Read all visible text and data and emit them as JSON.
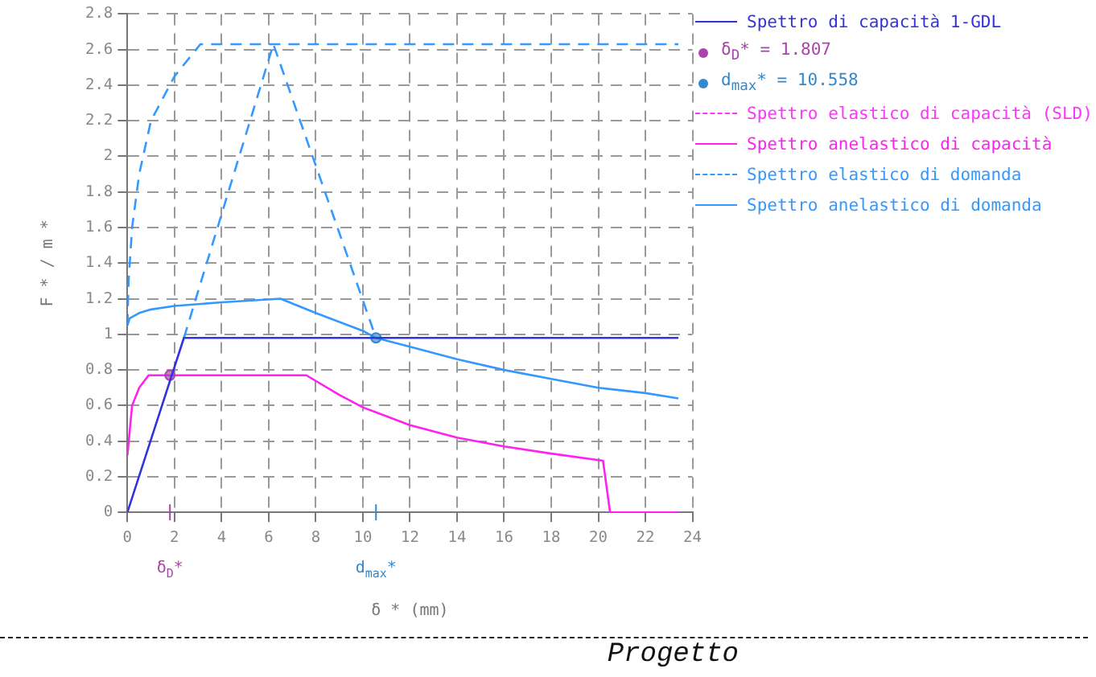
{
  "chart_data": {
    "type": "line",
    "xlabel": "δ * (mm)",
    "ylabel": "F * / m *",
    "xlim": [
      0,
      24
    ],
    "xticks": [
      0,
      2,
      4,
      6,
      8,
      10,
      12,
      14,
      16,
      18,
      20,
      22,
      24
    ],
    "ylim": [
      0,
      2.8
    ],
    "yticks": [
      0,
      0.2,
      0.4,
      0.6,
      0.8,
      1,
      1.2,
      1.4,
      1.6,
      1.8,
      2,
      2.2,
      2.4,
      2.6,
      2.8
    ],
    "grid": true,
    "legend": "right",
    "marker": "none",
    "series": [
      {
        "name": "Spettro di capacità 1-GDL",
        "color": "#3333dd",
        "line_style": "solid",
        "x": [
          0,
          2.4,
          23.4
        ],
        "values": [
          0,
          0.98,
          0.98
        ]
      },
      {
        "name": "δ$_{D}$* = 1.807",
        "color": "#aa44aa",
        "type": "scatter",
        "marker": "circle",
        "x": [
          1.807
        ],
        "values": [
          0.77
        ]
      },
      {
        "name": "d$_{max}$* = 10.558",
        "color": "#3388cc",
        "type": "scatter",
        "marker": "circle",
        "x": [
          10.558
        ],
        "values": [
          0.98
        ]
      },
      {
        "name": "Spettro elastico di capacità (SLD)",
        "color": "#ff33ff",
        "line_style": "dashed"
      },
      {
        "name": "Spettro anelastico di capacità",
        "color": "#ff22ee",
        "line_style": "solid",
        "x": [
          0,
          0.2,
          0.5,
          0.9,
          7.6,
          9,
          10,
          12,
          14,
          16,
          18,
          20.2,
          20.5,
          23.4
        ],
        "values": [
          0.32,
          0.6,
          0.7,
          0.77,
          0.77,
          0.66,
          0.59,
          0.49,
          0.42,
          0.37,
          0.33,
          0.29,
          0,
          0
        ]
      },
      {
        "name": "Spettro elastico di domanda",
        "color": "#3399ff",
        "line_style": "dashed",
        "x": [
          0,
          0.05,
          0.2,
          0.5,
          1,
          2,
          3.1,
          23.4
        ],
        "values": [
          1.05,
          1.3,
          1.6,
          1.9,
          2.2,
          2.45,
          2.63,
          2.63
        ]
      },
      {
        "color": "#3399ff",
        "line_style": "dashed",
        "x": [
          2.4,
          6.2,
          10.558
        ],
        "values": [
          0.98,
          2.63,
          0.98
        ]
      },
      {
        "name": "Spettro anelastico di domanda",
        "color": "#3399ff",
        "line_style": "solid",
        "x": [
          0,
          0.1,
          0.5,
          1,
          2,
          4,
          6.5,
          8,
          10,
          10.558,
          12,
          14,
          16,
          18,
          20,
          22,
          23.4
        ],
        "values": [
          1.05,
          1.09,
          1.12,
          1.14,
          1.16,
          1.18,
          1.2,
          1.12,
          1.02,
          0.98,
          0.93,
          0.86,
          0.8,
          0.75,
          0.7,
          0.67,
          0.64
        ]
      }
    ],
    "annotations": [
      "δ$_{D}$*",
      "d$_{max}$*",
      "Progetto"
    ]
  }
}
